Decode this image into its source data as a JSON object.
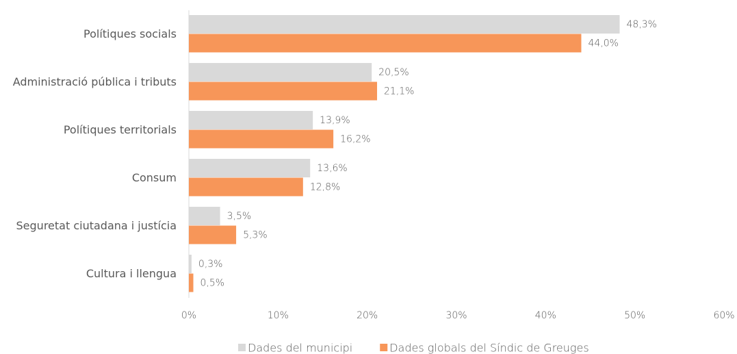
{
  "chart_data": {
    "type": "hbar",
    "categories": [
      "Polítiques socials",
      "Administració pública i tributs",
      "Polítiques territorials",
      "Consum",
      "Seguretat ciutadana i justícia",
      "Cultura i llengua"
    ],
    "series": [
      {
        "name": "Dades del municipi",
        "color": "#d9d9d9",
        "values": [
          48.3,
          20.5,
          13.9,
          13.6,
          3.5,
          0.3
        ],
        "value_labels": [
          "48,3%",
          "20,5%",
          "13,9%",
          "13,6%",
          "3,5%",
          "0,3%"
        ]
      },
      {
        "name": "Dades globals del Síndic de Greuges",
        "color": "#f79659",
        "values": [
          44.0,
          21.1,
          16.2,
          12.8,
          5.3,
          0.5
        ],
        "value_labels": [
          "44,0%",
          "21,1%",
          "16,2%",
          "12,8%",
          "5,3%",
          "0,5%"
        ]
      }
    ],
    "xlim": [
      0,
      60
    ],
    "xticks": [
      {
        "value": 0,
        "label": "0%"
      },
      {
        "value": 10,
        "label": "10%"
      },
      {
        "value": 20,
        "label": "20%"
      },
      {
        "value": 30,
        "label": "30%"
      },
      {
        "value": 40,
        "label": "40%"
      },
      {
        "value": 50,
        "label": "50%"
      },
      {
        "value": 60,
        "label": "60%"
      }
    ],
    "legend": "bottom"
  }
}
